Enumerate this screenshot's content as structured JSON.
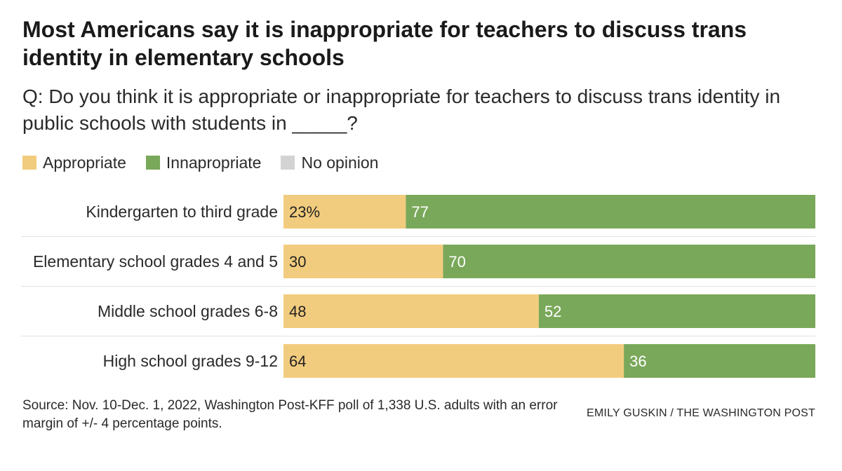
{
  "title": "Most Americans say it is inappropriate for teachers to discuss trans identity in elementary schools",
  "subtitle": "Q: Do you think it is appropriate or inappropriate for teachers to discuss trans identity in public schools with students in _____?",
  "legend": [
    {
      "label": "Appropriate",
      "color": "#f2cc7e"
    },
    {
      "label": "Innapropriate",
      "color": "#7aa85a"
    },
    {
      "label": "No opinion",
      "color": "#d3d3d3"
    }
  ],
  "chart_data": {
    "type": "bar",
    "orientation": "horizontal",
    "stacked": true,
    "categories": [
      "Kindergarten to third grade",
      "Elementary school grades 4 and 5",
      "Middle school grades 6-8",
      "High school grades 9-12"
    ],
    "series": [
      {
        "name": "Appropriate",
        "color": "#f2cc7e",
        "values": [
          23,
          30,
          48,
          64
        ],
        "labels": [
          "23%",
          "30",
          "48",
          "64"
        ]
      },
      {
        "name": "Innapropriate",
        "color": "#7aa85a",
        "values": [
          77,
          70,
          52,
          36
        ],
        "labels": [
          "77",
          "70",
          "52",
          "36"
        ]
      },
      {
        "name": "No opinion",
        "color": "#d3d3d3",
        "values": [
          0,
          0,
          0,
          0
        ],
        "labels": [
          "",
          "",
          "",
          ""
        ]
      }
    ],
    "xlim": [
      0,
      100
    ],
    "legend_position": "top-left",
    "grid": false
  },
  "source": "Source: Nov. 10-Dec. 1, 2022, Washington Post-KFF poll of 1,338 U.S. adults with an error margin of +/- 4 percentage points.",
  "credit": "EMILY GUSKIN / THE WASHINGTON POST"
}
